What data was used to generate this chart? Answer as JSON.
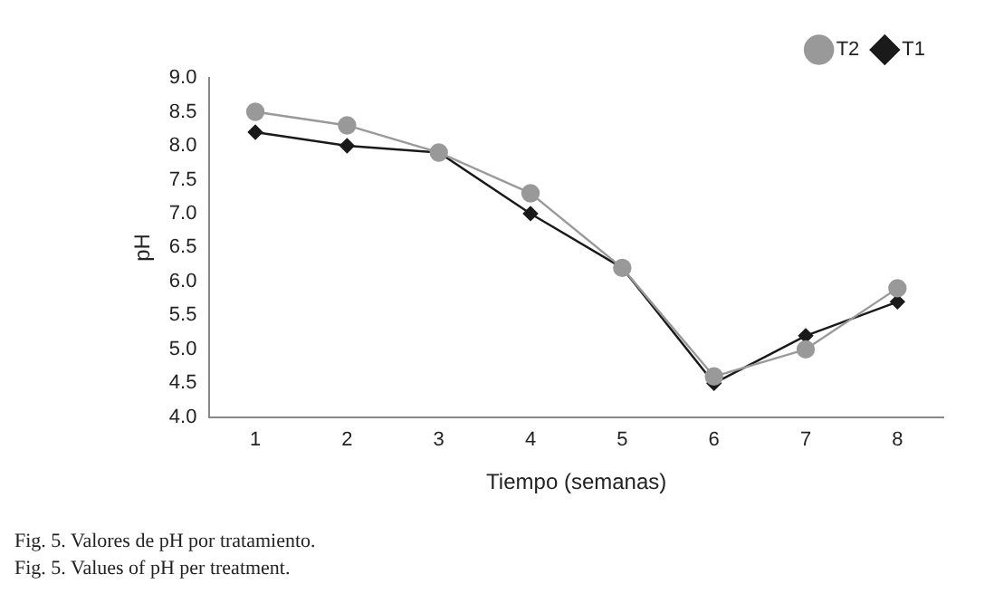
{
  "chart_data": {
    "type": "line",
    "xlabel": "Tiempo (semanas)",
    "ylabel": "pH",
    "categories": [
      "1",
      "2",
      "3",
      "4",
      "5",
      "6",
      "7",
      "8"
    ],
    "series": [
      {
        "name": "T1",
        "color": "#1a1a1a",
        "marker": "diamond",
        "values": [
          8.2,
          8.0,
          7.9,
          7.0,
          6.2,
          4.5,
          5.2,
          5.7
        ]
      },
      {
        "name": "T2",
        "color": "#999999",
        "marker": "circle",
        "values": [
          8.5,
          8.3,
          7.9,
          7.3,
          6.2,
          4.6,
          5.0,
          5.9
        ]
      }
    ],
    "ylim": [
      4,
      9
    ],
    "yticks": [
      {
        "value": 4,
        "label": "4.0"
      },
      {
        "value": 4.5,
        "label": "4.5"
      },
      {
        "value": 5,
        "label": "5.0"
      },
      {
        "value": 5.5,
        "label": "5.5"
      },
      {
        "value": 6,
        "label": "6.0"
      },
      {
        "value": 6.5,
        "label": "6.5"
      },
      {
        "value": 7,
        "label": "7.0"
      },
      {
        "value": 7.5,
        "label": "7.5"
      },
      {
        "value": 8,
        "label": "8.0"
      },
      {
        "value": 8.5,
        "label": "8.5"
      },
      {
        "value": 9,
        "label": "9.0"
      }
    ],
    "grid": false,
    "legend": "top right",
    "line_style": "solid",
    "annotations": [
      "Fig. 5. Valores de pH por tratamiento.",
      "Fig. 5. Values of pH per treatment."
    ]
  }
}
